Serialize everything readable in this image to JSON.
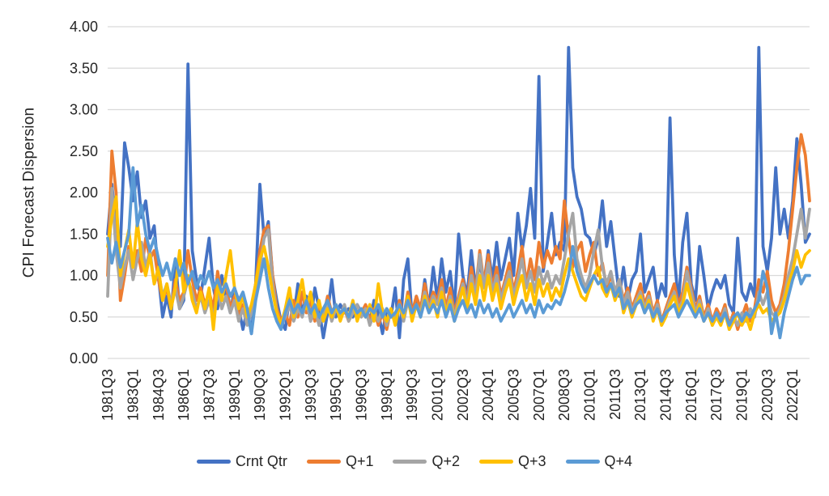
{
  "chart_data": {
    "type": "line",
    "title": "",
    "ylabel": "CPI Forecast Dispersion",
    "xlabel": "",
    "ylim": [
      0,
      4
    ],
    "ytick_step": 0.5,
    "ytick_labels": [
      "0.00",
      "0.50",
      "1.00",
      "1.50",
      "2.00",
      "2.50",
      "3.00",
      "3.50",
      "4.00"
    ],
    "x_tick_labels": [
      "1981Q3",
      "1983Q1",
      "1984Q3",
      "1986Q1",
      "1987Q3",
      "1989Q1",
      "1990Q3",
      "1992Q1",
      "1993Q3",
      "1995Q1",
      "1996Q3",
      "1998Q1",
      "1999Q3",
      "2001Q1",
      "2002Q3",
      "2004Q1",
      "2005Q3",
      "2007Q1",
      "2008Q3",
      "2010Q1",
      "2011Q3",
      "2013Q1",
      "2014Q3",
      "2016Q1",
      "2017Q3",
      "2019Q1",
      "2020Q3",
      "2022Q1"
    ],
    "x_tick_every": 6,
    "x_first_quarter": "1981Q3",
    "x_last_quarter": "2023Q1",
    "x_count": 167,
    "grid": "horizontal",
    "gridline_color": "#D9D9D9",
    "axis_text_color": "#262626",
    "legend_position": "bottom",
    "series": [
      {
        "name": "Crnt Qtr",
        "color": "#4472C4",
        "values": [
          1.5,
          2.1,
          1.55,
          1.35,
          2.6,
          2.3,
          1.9,
          2.25,
          1.7,
          1.9,
          1.45,
          1.6,
          1.0,
          0.5,
          0.75,
          0.5,
          1.2,
          0.6,
          0.7,
          3.55,
          1.3,
          0.95,
          0.75,
          1.1,
          1.45,
          0.85,
          0.6,
          1.0,
          0.75,
          0.55,
          0.85,
          0.6,
          0.35,
          0.6,
          0.3,
          0.9,
          2.1,
          1.45,
          1.65,
          1.0,
          0.7,
          0.45,
          0.35,
          0.75,
          0.5,
          0.9,
          0.55,
          0.75,
          0.45,
          0.85,
          0.6,
          0.25,
          0.55,
          0.95,
          0.5,
          0.65,
          0.55,
          0.6,
          0.5,
          0.65,
          0.55,
          0.6,
          0.45,
          0.7,
          0.55,
          0.3,
          0.6,
          0.5,
          0.85,
          0.25,
          0.95,
          1.2,
          0.5,
          0.75,
          0.55,
          0.95,
          0.6,
          1.1,
          0.7,
          1.2,
          0.8,
          1.05,
          0.6,
          1.5,
          1.0,
          0.75,
          1.3,
          0.85,
          1.15,
          0.9,
          1.3,
          0.95,
          1.4,
          0.95,
          1.2,
          1.45,
          1.0,
          1.75,
          1.3,
          1.6,
          2.05,
          1.45,
          3.4,
          1.05,
          1.4,
          1.75,
          1.25,
          1.4,
          1.3,
          3.75,
          2.3,
          1.95,
          1.8,
          1.5,
          1.45,
          1.25,
          1.45,
          1.9,
          1.35,
          1.65,
          1.2,
          0.75,
          1.1,
          0.7,
          0.95,
          1.05,
          1.5,
          0.8,
          0.95,
          1.1,
          0.7,
          0.9,
          0.75,
          2.9,
          1.25,
          0.65,
          1.4,
          1.75,
          0.9,
          0.7,
          1.35,
          1.0,
          0.6,
          0.8,
          0.95,
          0.85,
          1.0,
          0.65,
          0.55,
          1.45,
          0.8,
          0.7,
          0.9,
          0.75,
          3.75,
          1.35,
          1.05,
          1.45,
          2.3,
          1.5,
          1.8,
          1.45,
          1.9,
          2.65,
          2.1,
          1.4,
          1.5
        ]
      },
      {
        "name": "Q+1",
        "color": "#ED7D31",
        "values": [
          1.0,
          2.5,
          2.0,
          0.7,
          1.0,
          1.35,
          1.1,
          1.3,
          1.05,
          1.45,
          1.2,
          1.3,
          0.95,
          0.7,
          0.85,
          0.6,
          0.95,
          0.7,
          0.8,
          1.3,
          0.95,
          0.7,
          0.85,
          0.65,
          0.8,
          0.6,
          1.05,
          0.75,
          0.9,
          0.6,
          0.75,
          0.5,
          0.65,
          0.45,
          0.6,
          0.9,
          1.3,
          1.55,
          1.6,
          1.0,
          0.6,
          0.45,
          0.55,
          0.4,
          0.7,
          0.5,
          0.8,
          0.55,
          0.7,
          0.45,
          0.65,
          0.5,
          0.75,
          0.55,
          0.65,
          0.5,
          0.6,
          0.45,
          0.65,
          0.5,
          0.55,
          0.65,
          0.45,
          0.6,
          0.4,
          0.55,
          0.35,
          0.6,
          0.45,
          0.7,
          0.5,
          0.8,
          0.55,
          0.75,
          0.6,
          0.9,
          0.65,
          0.8,
          0.7,
          0.95,
          0.6,
          0.85,
          0.55,
          0.75,
          0.95,
          0.7,
          1.1,
          0.8,
          1.3,
          0.9,
          1.25,
          0.85,
          1.1,
          0.75,
          0.95,
          1.15,
          0.8,
          1.05,
          1.35,
          0.9,
          1.2,
          0.95,
          1.4,
          1.1,
          1.3,
          1.15,
          1.35,
          1.2,
          1.9,
          1.45,
          1.1,
          1.3,
          1.4,
          1.05,
          1.25,
          1.4,
          1.0,
          1.15,
          0.85,
          1.0,
          0.8,
          0.95,
          0.7,
          0.85,
          0.6,
          0.75,
          0.9,
          0.65,
          0.8,
          0.55,
          0.7,
          0.45,
          0.6,
          0.75,
          0.9,
          0.65,
          0.8,
          1.1,
          0.85,
          0.6,
          0.75,
          0.5,
          0.65,
          0.45,
          0.6,
          0.5,
          0.65,
          0.4,
          0.55,
          0.35,
          0.5,
          0.65,
          0.45,
          0.6,
          0.95,
          0.8,
          1.05,
          0.7,
          0.55,
          0.65,
          0.9,
          1.3,
          1.8,
          2.3,
          2.7,
          2.45,
          1.9
        ]
      },
      {
        "name": "Q+2",
        "color": "#A5A5A5",
        "values": [
          0.75,
          2.05,
          1.3,
          0.85,
          1.1,
          1.3,
          0.95,
          1.2,
          1.4,
          1.1,
          1.3,
          0.9,
          1.05,
          0.75,
          0.9,
          0.65,
          0.85,
          0.6,
          0.75,
          0.95,
          0.8,
          0.6,
          0.75,
          0.55,
          0.7,
          0.5,
          0.8,
          0.6,
          0.75,
          0.55,
          0.7,
          0.45,
          0.6,
          0.4,
          0.55,
          0.8,
          1.1,
          1.45,
          1.55,
          0.9,
          0.55,
          0.4,
          0.5,
          0.65,
          0.45,
          0.6,
          0.5,
          0.7,
          0.45,
          0.6,
          0.4,
          0.55,
          0.65,
          0.45,
          0.6,
          0.5,
          0.65,
          0.45,
          0.55,
          0.65,
          0.5,
          0.6,
          0.4,
          0.55,
          0.45,
          0.6,
          0.4,
          0.55,
          0.5,
          0.65,
          0.45,
          0.7,
          0.5,
          0.65,
          0.55,
          0.8,
          0.6,
          0.75,
          0.65,
          0.85,
          0.55,
          0.75,
          0.5,
          0.7,
          0.9,
          0.65,
          1.0,
          0.75,
          1.25,
          0.85,
          1.15,
          0.8,
          1.0,
          0.7,
          0.9,
          1.05,
          0.75,
          0.95,
          1.2,
          0.85,
          1.05,
          0.8,
          1.1,
          0.9,
          1.05,
          0.85,
          1.0,
          0.9,
          1.2,
          1.5,
          1.75,
          1.2,
          1.0,
          0.85,
          1.0,
          1.3,
          1.55,
          1.1,
          0.9,
          1.05,
          0.8,
          0.95,
          0.65,
          0.8,
          0.55,
          0.7,
          0.8,
          0.6,
          0.75,
          0.5,
          0.65,
          0.45,
          0.55,
          0.7,
          0.8,
          0.6,
          0.7,
          1.05,
          0.8,
          0.55,
          0.7,
          0.45,
          0.6,
          0.4,
          0.55,
          0.45,
          0.6,
          0.35,
          0.5,
          0.4,
          0.55,
          0.45,
          0.6,
          0.5,
          0.8,
          0.65,
          0.8,
          0.55,
          0.5,
          0.6,
          0.75,
          1.0,
          1.2,
          1.5,
          1.8,
          1.45,
          1.8
        ]
      },
      {
        "name": "Q+3",
        "color": "#FFC000",
        "values": [
          1.35,
          1.7,
          1.95,
          1.0,
          1.3,
          1.55,
          1.1,
          1.65,
          1.2,
          1.0,
          1.25,
          0.9,
          1.1,
          0.7,
          0.9,
          0.6,
          0.85,
          1.3,
          0.8,
          1.0,
          0.7,
          0.55,
          0.8,
          0.6,
          0.85,
          0.35,
          0.9,
          0.7,
          1.0,
          1.3,
          0.85,
          0.6,
          0.75,
          0.5,
          0.65,
          0.9,
          1.2,
          1.35,
          1.1,
          0.8,
          0.55,
          0.4,
          0.6,
          0.85,
          0.5,
          0.7,
          0.95,
          0.6,
          0.8,
          0.5,
          0.7,
          0.45,
          0.6,
          0.5,
          0.65,
          0.45,
          0.6,
          0.5,
          0.7,
          0.45,
          0.6,
          0.5,
          0.65,
          0.45,
          0.9,
          0.55,
          0.45,
          0.6,
          0.4,
          0.65,
          0.5,
          0.75,
          0.45,
          0.65,
          0.5,
          0.75,
          0.55,
          0.7,
          0.5,
          0.8,
          0.55,
          0.7,
          0.45,
          0.65,
          0.85,
          0.6,
          0.9,
          0.65,
          1.0,
          0.7,
          1.0,
          0.7,
          0.9,
          0.6,
          0.8,
          0.95,
          0.65,
          0.85,
          1.0,
          0.7,
          0.9,
          0.65,
          0.95,
          0.75,
          0.9,
          0.7,
          0.85,
          0.75,
          1.0,
          1.2,
          1.05,
          0.9,
          0.75,
          0.7,
          0.85,
          1.0,
          1.1,
          0.85,
          0.75,
          0.9,
          0.7,
          0.85,
          0.55,
          0.7,
          0.5,
          0.65,
          0.75,
          0.55,
          0.7,
          0.45,
          0.6,
          0.4,
          0.5,
          0.65,
          0.75,
          0.55,
          0.65,
          0.9,
          0.7,
          0.5,
          0.65,
          0.45,
          0.55,
          0.4,
          0.5,
          0.4,
          0.55,
          0.35,
          0.45,
          0.55,
          0.4,
          0.5,
          0.35,
          0.55,
          0.65,
          0.55,
          0.6,
          0.45,
          0.5,
          0.55,
          0.7,
          0.9,
          1.05,
          1.3,
          1.1,
          1.25,
          1.3
        ]
      },
      {
        "name": "Q+4",
        "color": "#5B9BD5",
        "values": [
          1.45,
          1.15,
          1.4,
          1.1,
          1.3,
          1.5,
          2.3,
          1.6,
          1.85,
          1.5,
          1.3,
          1.45,
          1.2,
          1.0,
          1.15,
          0.95,
          1.2,
          1.0,
          1.15,
          0.9,
          1.05,
          0.85,
          1.0,
          0.9,
          1.05,
          0.85,
          0.95,
          0.8,
          0.9,
          0.75,
          0.85,
          0.7,
          0.8,
          0.6,
          0.3,
          0.7,
          0.95,
          1.2,
          0.85,
          0.6,
          0.45,
          0.35,
          0.55,
          0.7,
          0.55,
          0.65,
          0.55,
          0.7,
          0.55,
          0.65,
          0.5,
          0.6,
          0.7,
          0.55,
          0.65,
          0.55,
          0.6,
          0.5,
          0.65,
          0.55,
          0.6,
          0.5,
          0.6,
          0.55,
          0.65,
          0.5,
          0.6,
          0.5,
          0.55,
          0.65,
          0.55,
          0.7,
          0.55,
          0.65,
          0.5,
          0.7,
          0.55,
          0.65,
          0.55,
          0.7,
          0.5,
          0.65,
          0.45,
          0.6,
          0.7,
          0.55,
          0.65,
          0.5,
          0.7,
          0.55,
          0.65,
          0.5,
          0.6,
          0.45,
          0.55,
          0.65,
          0.5,
          0.6,
          0.7,
          0.55,
          0.65,
          0.5,
          0.7,
          0.55,
          0.65,
          0.6,
          0.7,
          0.65,
          0.8,
          1.0,
          1.35,
          1.05,
          0.9,
          0.8,
          0.9,
          1.0,
          0.9,
          0.95,
          0.8,
          0.9,
          0.75,
          0.85,
          0.6,
          0.7,
          0.55,
          0.65,
          0.7,
          0.55,
          0.65,
          0.5,
          0.6,
          0.45,
          0.55,
          0.6,
          0.65,
          0.5,
          0.6,
          0.7,
          0.6,
          0.5,
          0.6,
          0.45,
          0.55,
          0.45,
          0.55,
          0.45,
          0.55,
          0.4,
          0.5,
          0.55,
          0.45,
          0.55,
          0.5,
          0.6,
          0.7,
          1.05,
          0.85,
          0.3,
          0.55,
          0.25,
          0.55,
          0.75,
          0.95,
          1.1,
          0.9,
          1.0,
          1.0
        ]
      }
    ]
  },
  "legend": {
    "items": [
      {
        "label": "Crnt Qtr",
        "color": "#4472C4"
      },
      {
        "label": "Q+1",
        "color": "#ED7D31"
      },
      {
        "label": "Q+2",
        "color": "#A5A5A5"
      },
      {
        "label": "Q+3",
        "color": "#FFC000"
      },
      {
        "label": "Q+4",
        "color": "#5B9BD5"
      }
    ]
  }
}
